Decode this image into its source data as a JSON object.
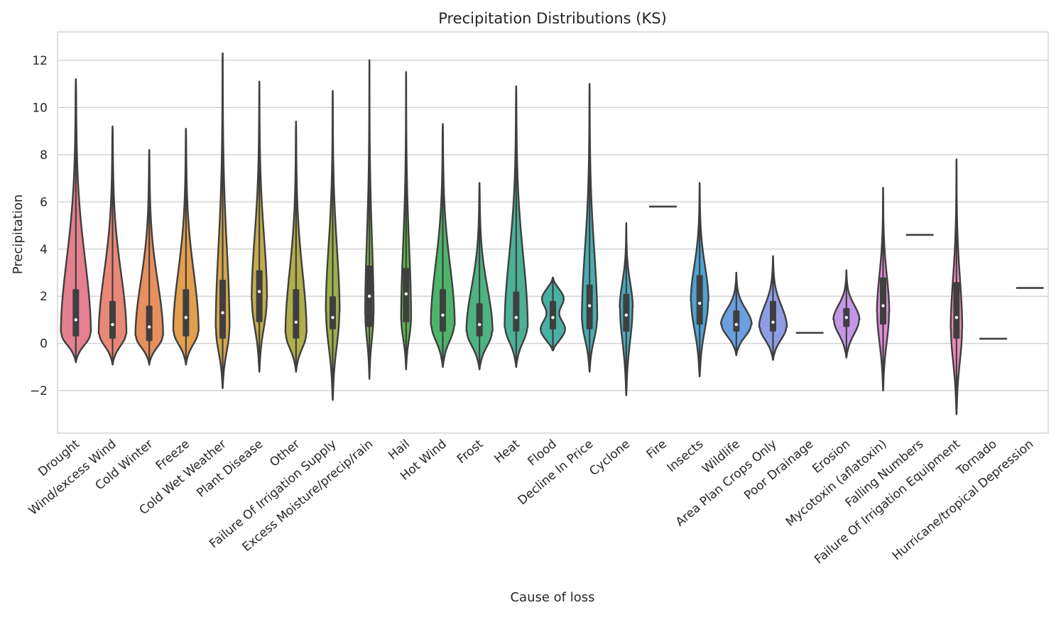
{
  "chart_data": {
    "type": "violin",
    "title": "Precipitation Distributions (KS)",
    "xlabel": "Cause of loss",
    "ylabel": "Precipitation",
    "ylim": [
      -3.8,
      13.2
    ],
    "yticks": [
      -2,
      0,
      2,
      4,
      6,
      8,
      10,
      12
    ],
    "grid": true,
    "legend": "none",
    "series": [
      {
        "category": "Drought",
        "color": "#e5808e",
        "min": -0.8,
        "max": 11.2,
        "median": 1.0,
        "q1": 0.3,
        "q3": 2.3,
        "peak": 0.4,
        "maxw": 0.78,
        "kind": "skew"
      },
      {
        "category": "Wind/excess Wind",
        "color": "#ea8878",
        "min": -0.9,
        "max": 9.2,
        "median": 0.8,
        "q1": 0.2,
        "q3": 1.8,
        "peak": 0.4,
        "maxw": 0.72,
        "kind": "skew"
      },
      {
        "category": "Cold Winter",
        "color": "#e88f5e",
        "min": -0.9,
        "max": 8.2,
        "median": 0.7,
        "q1": 0.1,
        "q3": 1.6,
        "peak": 0.3,
        "maxw": 0.72,
        "kind": "skew"
      },
      {
        "category": "Freeze",
        "color": "#e39e4e",
        "min": -0.9,
        "max": 9.1,
        "median": 1.1,
        "q1": 0.3,
        "q3": 2.3,
        "peak": 0.5,
        "maxw": 0.66,
        "kind": "skew"
      },
      {
        "category": "Cold Wet Weather",
        "color": "#d5a64c",
        "min": -1.9,
        "max": 12.3,
        "median": 1.3,
        "q1": 0.2,
        "q3": 2.7,
        "peak": 0.6,
        "maxw": 0.36,
        "kind": "skew"
      },
      {
        "category": "Plant Disease",
        "color": "#c4ac4c",
        "min": -1.2,
        "max": 11.1,
        "median": 2.2,
        "q1": 0.9,
        "q3": 3.1,
        "peak": 1.8,
        "maxw": 0.4,
        "kind": "skew"
      },
      {
        "category": "Other",
        "color": "#b1ae4c",
        "min": -1.2,
        "max": 9.4,
        "median": 0.9,
        "q1": 0.2,
        "q3": 2.3,
        "peak": 0.4,
        "maxw": 0.55,
        "kind": "skew"
      },
      {
        "category": "Failure Of Irrigation Supply",
        "color": "#9cb04c",
        "min": -2.4,
        "max": 10.7,
        "median": 1.1,
        "q1": 0.6,
        "q3": 2.0,
        "peak": 1.3,
        "maxw": 0.36,
        "kind": "skew"
      },
      {
        "category": "Excess Moisture/precip/rain",
        "color": "#82b24c",
        "min": -1.5,
        "max": 12.0,
        "median": 2.0,
        "q1": 0.7,
        "q3": 3.3,
        "peak": 1.2,
        "maxw": 0.22,
        "kind": "skew"
      },
      {
        "category": "Hail",
        "color": "#5fb44c",
        "min": -1.1,
        "max": 11.5,
        "median": 2.1,
        "q1": 0.9,
        "q3": 3.2,
        "peak": 1.0,
        "maxw": 0.26,
        "kind": "skew"
      },
      {
        "category": "Hot Wind",
        "color": "#4db56a",
        "min": -1.0,
        "max": 9.3,
        "median": 1.2,
        "q1": 0.5,
        "q3": 2.3,
        "peak": 0.8,
        "maxw": 0.62,
        "kind": "skew"
      },
      {
        "category": "Frost",
        "color": "#4db383",
        "min": -1.1,
        "max": 6.8,
        "median": 0.8,
        "q1": 0.3,
        "q3": 1.7,
        "peak": 0.5,
        "maxw": 0.68,
        "kind": "skew"
      },
      {
        "category": "Heat",
        "color": "#4bb195",
        "min": -1.0,
        "max": 10.9,
        "median": 1.1,
        "q1": 0.5,
        "q3": 2.2,
        "peak": 0.7,
        "maxw": 0.6,
        "kind": "skew"
      },
      {
        "category": "Flood",
        "color": "#4aafa4",
        "min": -0.3,
        "max": 2.8,
        "median": 1.1,
        "q1": 0.6,
        "q3": 1.8,
        "peak": 1.1,
        "maxw": 0.78,
        "kind": "flood"
      },
      {
        "category": "Decline In Price",
        "color": "#49adb1",
        "min": -1.2,
        "max": 11.0,
        "median": 1.6,
        "q1": 0.6,
        "q3": 2.5,
        "peak": 1.0,
        "maxw": 0.4,
        "kind": "skew"
      },
      {
        "category": "Cyclone",
        "color": "#4aaabc",
        "min": -2.2,
        "max": 5.1,
        "median": 1.2,
        "q1": 0.5,
        "q3": 2.1,
        "peak": 1.5,
        "maxw": 0.34,
        "kind": "skew"
      },
      {
        "category": "Fire",
        "color": "#4ba7c8",
        "min": 5.8,
        "max": 5.8,
        "median": 5.8,
        "q1": 5.8,
        "q3": 5.8,
        "peak": 5.8,
        "maxw": 0,
        "kind": "single"
      },
      {
        "category": "Insects",
        "color": "#4ea3d3",
        "min": -1.4,
        "max": 6.8,
        "median": 1.7,
        "q1": 0.8,
        "q3": 2.9,
        "peak": 1.8,
        "maxw": 0.46,
        "kind": "skew"
      },
      {
        "category": "Wildlife",
        "color": "#6aa0e0",
        "min": -0.5,
        "max": 3.0,
        "median": 0.8,
        "q1": 0.5,
        "q3": 1.4,
        "peak": 0.8,
        "maxw": 0.8,
        "kind": "skew"
      },
      {
        "category": "Area Plan Crops Only",
        "color": "#8e9de5",
        "min": -0.7,
        "max": 3.7,
        "median": 0.9,
        "q1": 0.5,
        "q3": 1.8,
        "peak": 0.7,
        "maxw": 0.72,
        "kind": "skew"
      },
      {
        "category": "Poor Drainage",
        "color": "#a89be7",
        "min": 0.45,
        "max": 0.45,
        "median": 0.45,
        "q1": 0.45,
        "q3": 0.45,
        "peak": 0.45,
        "maxw": 0,
        "kind": "single"
      },
      {
        "category": "Erosion",
        "color": "#c497e6",
        "min": -0.6,
        "max": 3.1,
        "median": 1.1,
        "q1": 0.7,
        "q3": 1.5,
        "peak": 1.0,
        "maxw": 0.68,
        "kind": "skew"
      },
      {
        "category": "Mycotoxin (aflatoxin)",
        "color": "#e08ed7",
        "min": -2.0,
        "max": 6.6,
        "median": 1.6,
        "q1": 0.8,
        "q3": 2.8,
        "peak": 1.3,
        "maxw": 0.32,
        "kind": "skew"
      },
      {
        "category": "Falling Numbers",
        "color": "#e68ec6",
        "min": 4.6,
        "max": 4.6,
        "median": 4.6,
        "q1": 4.6,
        "q3": 4.6,
        "peak": 4.6,
        "maxw": 0,
        "kind": "single"
      },
      {
        "category": "Failure Of Irrigation Equipment",
        "color": "#e98eb8",
        "min": -3.0,
        "max": 7.8,
        "median": 1.1,
        "q1": 0.2,
        "q3": 2.6,
        "peak": 0.6,
        "maxw": 0.3,
        "kind": "skew"
      },
      {
        "category": "Tornado",
        "color": "#ea8aa9",
        "min": 0.2,
        "max": 0.2,
        "median": 0.2,
        "q1": 0.2,
        "q3": 0.2,
        "peak": 0.2,
        "maxw": 0,
        "kind": "single"
      },
      {
        "category": "Hurricane/tropical Depression",
        "color": "#e8849c",
        "min": 2.35,
        "max": 2.35,
        "median": 2.35,
        "q1": 2.35,
        "q3": 2.35,
        "peak": 2.35,
        "maxw": 0,
        "kind": "single"
      }
    ]
  }
}
